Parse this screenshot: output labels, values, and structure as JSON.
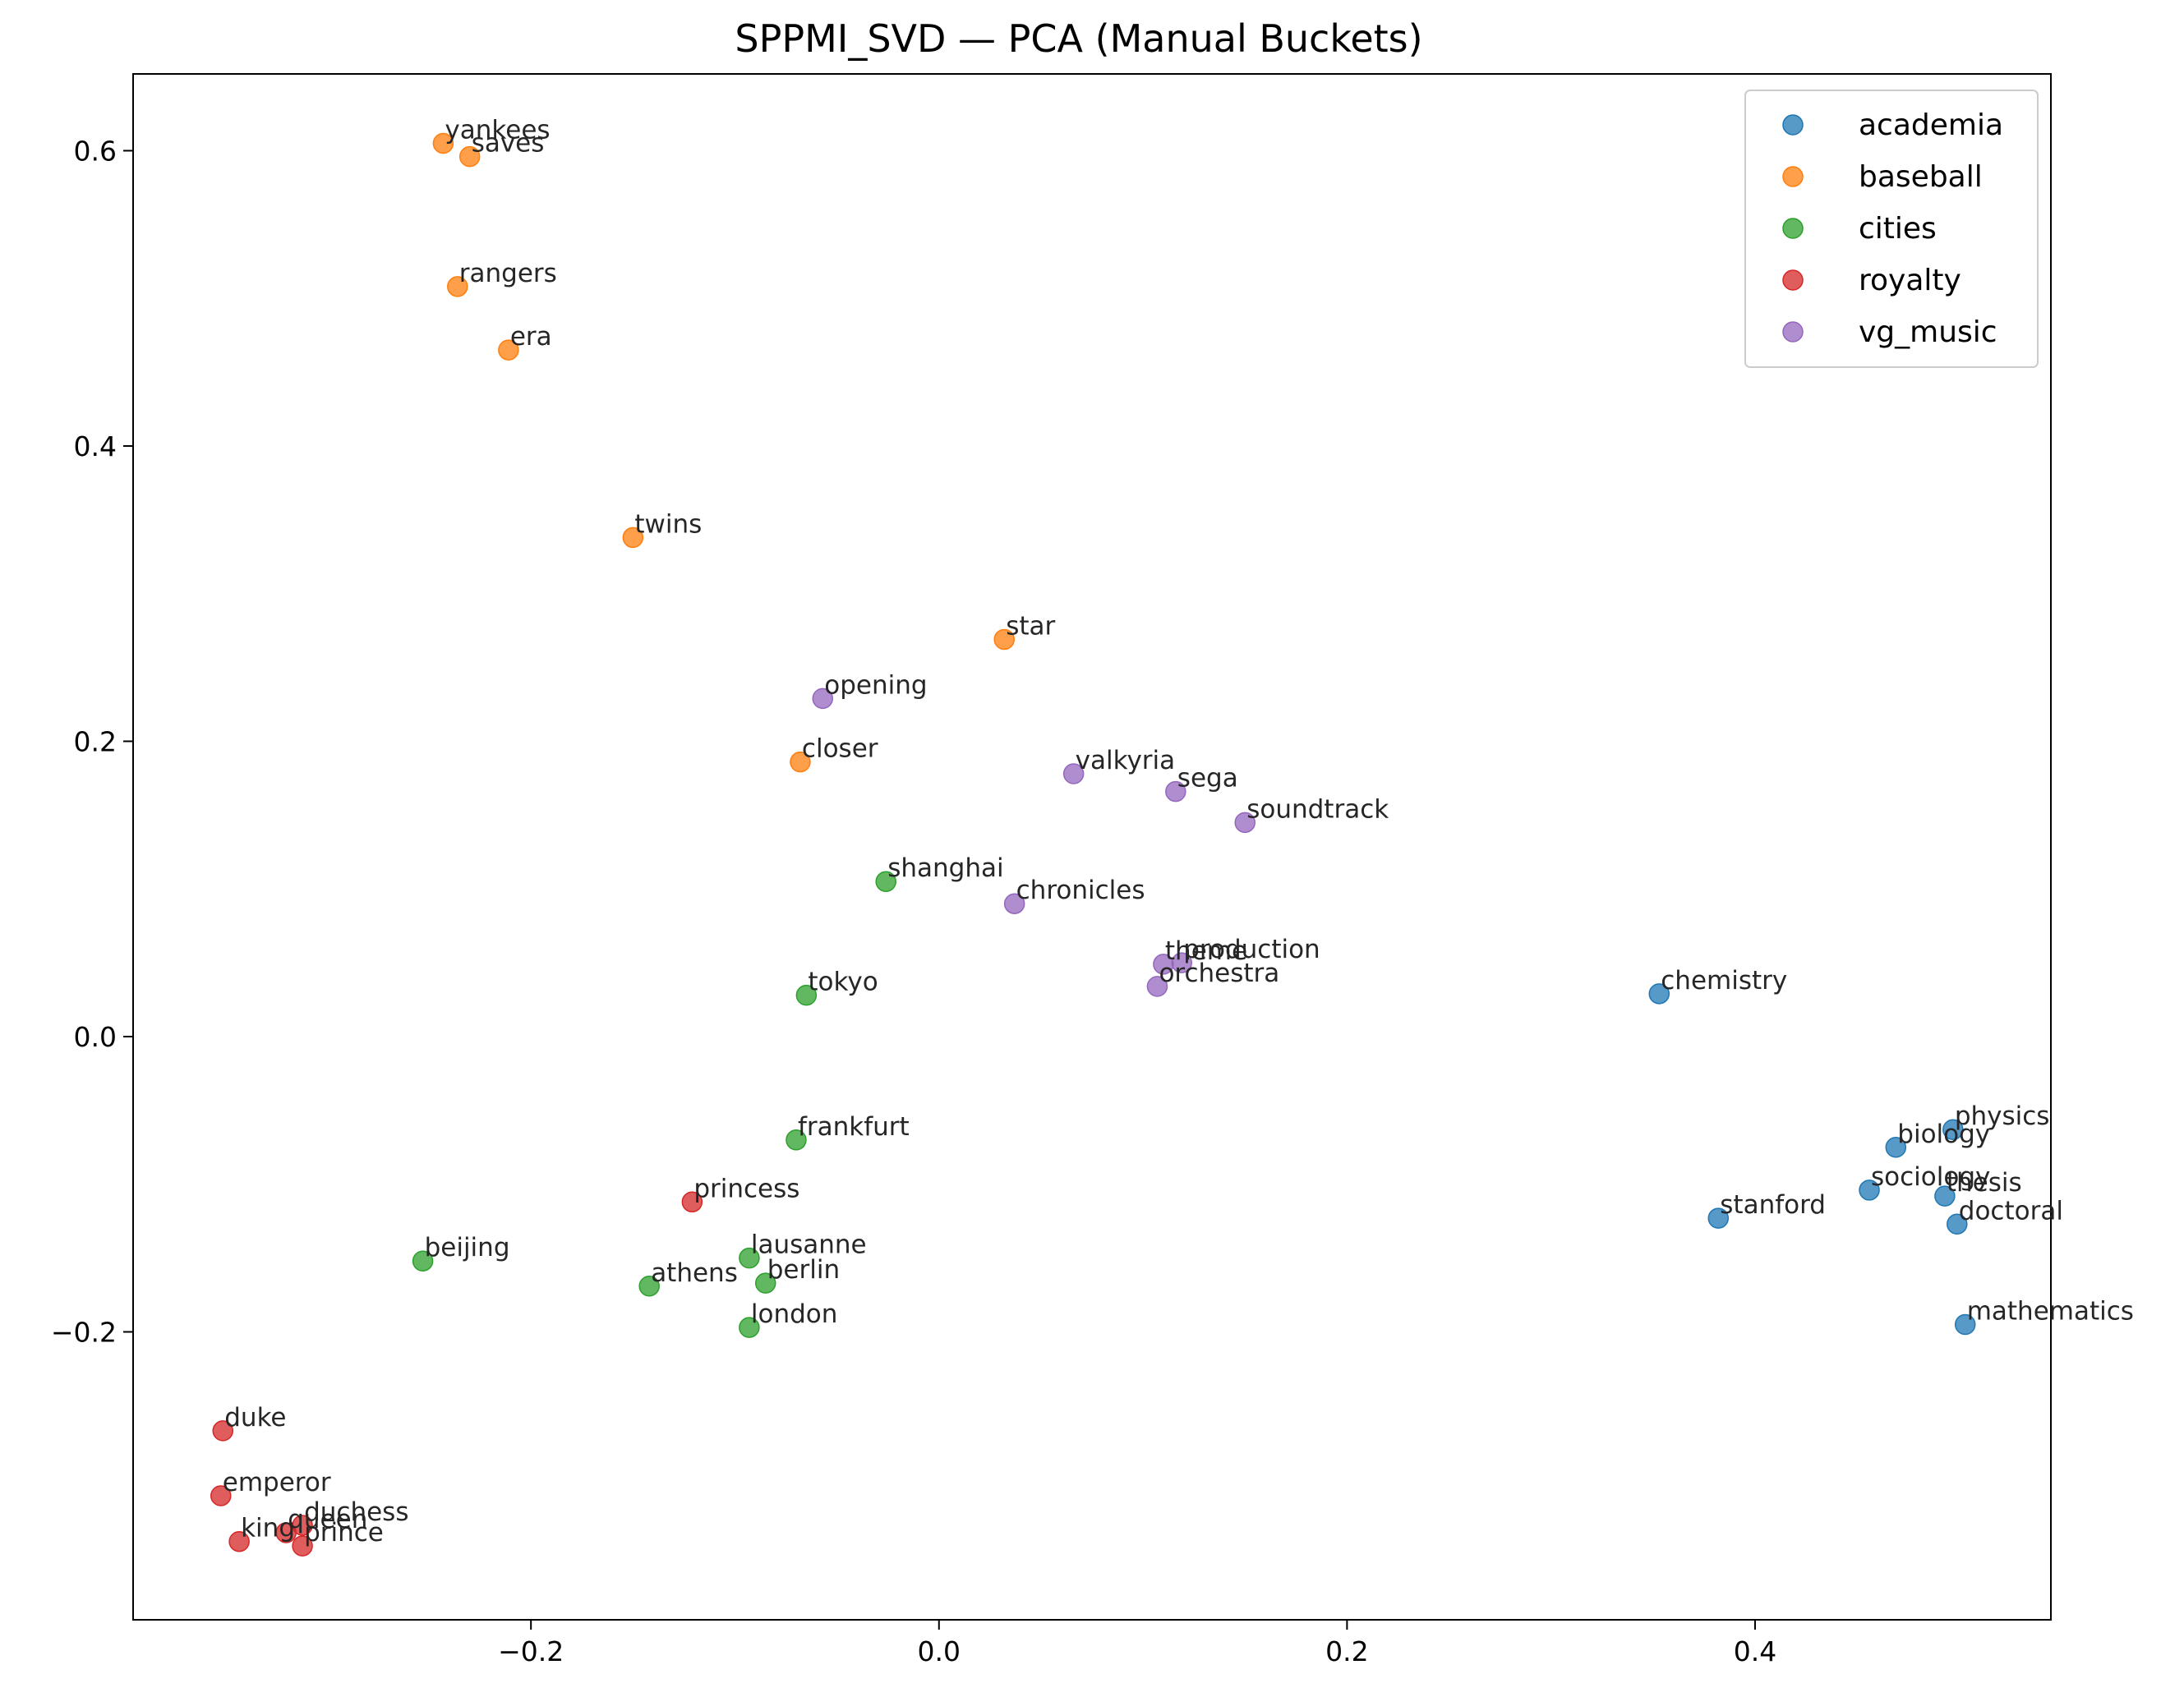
{
  "chart_data": {
    "type": "scatter",
    "title": "SPPMI_SVD — PCA (Manual Buckets)",
    "xlabel": "",
    "ylabel": "",
    "xlim": [
      -0.395,
      0.545
    ],
    "ylim": [
      -0.395,
      0.652
    ],
    "xticks": [
      -0.2,
      0.0,
      0.2,
      0.4
    ],
    "yticks": [
      -0.2,
      0.0,
      0.2,
      0.4,
      0.6
    ],
    "xtick_labels": [
      "−0.2",
      "0.0",
      "0.2",
      "0.4"
    ],
    "ytick_labels": [
      "−0.2",
      "0.0",
      "0.2",
      "0.4",
      "0.6"
    ],
    "grid": false,
    "legend_position": "top-right",
    "series": [
      {
        "name": "academia",
        "color": "#1f77b4",
        "points": [
          {
            "label": "chemistry",
            "x": 0.353,
            "y": 0.029
          },
          {
            "label": "physics",
            "x": 0.497,
            "y": -0.063
          },
          {
            "label": "biology",
            "x": 0.469,
            "y": -0.075
          },
          {
            "label": "sociology",
            "x": 0.456,
            "y": -0.104
          },
          {
            "label": "thesis",
            "x": 0.493,
            "y": -0.108
          },
          {
            "label": "doctoral",
            "x": 0.499,
            "y": -0.127
          },
          {
            "label": "stanford",
            "x": 0.382,
            "y": -0.123
          },
          {
            "label": "mathematics",
            "x": 0.503,
            "y": -0.195
          }
        ]
      },
      {
        "name": "baseball",
        "color": "#ff7f0e",
        "points": [
          {
            "label": "yankees",
            "x": -0.243,
            "y": 0.605
          },
          {
            "label": "saves",
            "x": -0.23,
            "y": 0.596
          },
          {
            "label": "rangers",
            "x": -0.236,
            "y": 0.508
          },
          {
            "label": "era",
            "x": -0.211,
            "y": 0.465
          },
          {
            "label": "twins",
            "x": -0.15,
            "y": 0.338
          },
          {
            "label": "star",
            "x": 0.032,
            "y": 0.269
          },
          {
            "label": "closer",
            "x": -0.068,
            "y": 0.186
          }
        ]
      },
      {
        "name": "cities",
        "color": "#2ca02c",
        "points": [
          {
            "label": "shanghai",
            "x": -0.026,
            "y": 0.105
          },
          {
            "label": "tokyo",
            "x": -0.065,
            "y": 0.028
          },
          {
            "label": "frankfurt",
            "x": -0.07,
            "y": -0.07
          },
          {
            "label": "beijing",
            "x": -0.253,
            "y": -0.152
          },
          {
            "label": "lausanne",
            "x": -0.093,
            "y": -0.15
          },
          {
            "label": "athens",
            "x": -0.142,
            "y": -0.169
          },
          {
            "label": "berlin",
            "x": -0.085,
            "y": -0.167
          },
          {
            "label": "london",
            "x": -0.093,
            "y": -0.197
          }
        ]
      },
      {
        "name": "royalty",
        "color": "#d62728",
        "points": [
          {
            "label": "princess",
            "x": -0.121,
            "y": -0.112
          },
          {
            "label": "duke",
            "x": -0.351,
            "y": -0.267
          },
          {
            "label": "emperor",
            "x": -0.352,
            "y": -0.311
          },
          {
            "label": "duchess",
            "x": -0.312,
            "y": -0.331
          },
          {
            "label": "queen",
            "x": -0.32,
            "y": -0.336
          },
          {
            "label": "king",
            "x": -0.343,
            "y": -0.342
          },
          {
            "label": "prince",
            "x": -0.312,
            "y": -0.345
          }
        ]
      },
      {
        "name": "vg_music",
        "color": "#9467bd",
        "points": [
          {
            "label": "opening",
            "x": -0.057,
            "y": 0.229
          },
          {
            "label": "valkyria",
            "x": 0.066,
            "y": 0.178
          },
          {
            "label": "sega",
            "x": 0.116,
            "y": 0.166
          },
          {
            "label": "soundtrack",
            "x": 0.15,
            "y": 0.145
          },
          {
            "label": "chronicles",
            "x": 0.037,
            "y": 0.09
          },
          {
            "label": "theme",
            "x": 0.11,
            "y": 0.049
          },
          {
            "label": "production",
            "x": 0.119,
            "y": 0.05
          },
          {
            "label": "orchestra",
            "x": 0.107,
            "y": 0.034
          }
        ]
      }
    ]
  }
}
